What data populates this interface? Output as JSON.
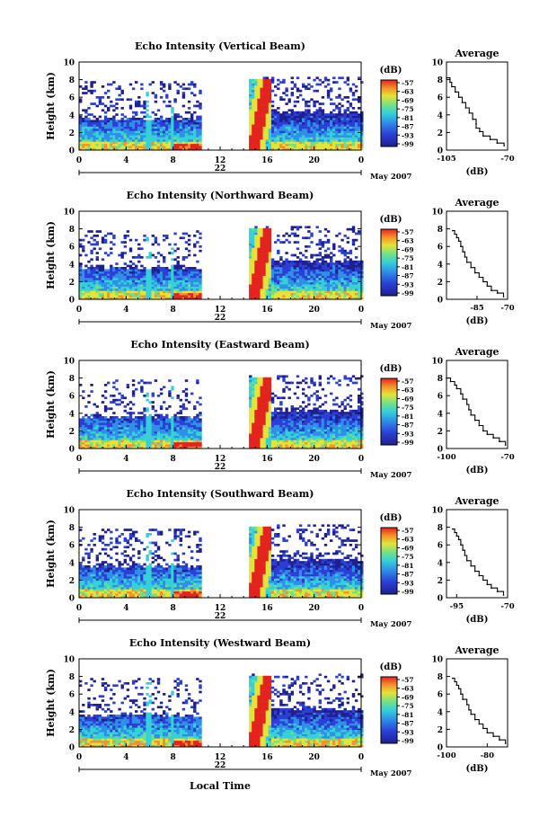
{
  "figure": {
    "xlabel": "Local Time",
    "colorbar_unit": "(dB)",
    "date_label": "May 2007",
    "avg_title": "Average",
    "avg_xlabel": "(dB)"
  },
  "chart_data": [
    {
      "type": "heatmap",
      "title": "Echo Intensity (Vertical Beam)",
      "ylabel": "Height (km)",
      "xlabel": "Local Time",
      "x_ticks": [
        "0",
        "4",
        "8",
        "12",
        "16",
        "20",
        "0"
      ],
      "day_label": "22",
      "date_label": "May 2007",
      "ylim": [
        0,
        10
      ],
      "y_ticks": [
        "0",
        "2",
        "4",
        "6",
        "8",
        "10"
      ],
      "colorbar": {
        "unit": "(dB)",
        "ticks": [
          "-57",
          "-63",
          "-69",
          "-75",
          "-81",
          "-87",
          "-93",
          "-99"
        ]
      },
      "average_profile": {
        "title": "Average",
        "xlabel": "(dB)",
        "xlim": [
          -105,
          -70
        ],
        "x_ticks": [
          "-105",
          "-70"
        ],
        "ylim": [
          0,
          10
        ],
        "y_ticks": [
          "0",
          "2",
          "4",
          "6",
          "8",
          "10"
        ],
        "x": [
          -72,
          -76,
          -80,
          -84,
          -86,
          -88,
          -88,
          -90,
          -92,
          -94,
          -96,
          -98,
          -100,
          -102,
          -103,
          -105
        ],
        "y": [
          0.5,
          0.8,
          1.2,
          1.6,
          2.1,
          2.5,
          3.0,
          3.5,
          4.2,
          4.8,
          5.4,
          6.0,
          6.6,
          7.2,
          7.7,
          8.2
        ]
      }
    },
    {
      "type": "heatmap",
      "title": "Echo Intensity (Northward Beam)",
      "ylabel": "Height (km)",
      "xlabel": "Local Time",
      "x_ticks": [
        "0",
        "4",
        "8",
        "12",
        "16",
        "20",
        "0"
      ],
      "day_label": "22",
      "date_label": "May 2007",
      "ylim": [
        0,
        10
      ],
      "y_ticks": [
        "0",
        "2",
        "4",
        "6",
        "8",
        "10"
      ],
      "colorbar": {
        "unit": "(dB)",
        "ticks": [
          "-57",
          "-63",
          "-69",
          "-75",
          "-81",
          "-87",
          "-93",
          "-99"
        ]
      },
      "average_profile": {
        "title": "Average",
        "xlabel": "(dB)",
        "xlim": [
          -100,
          -70
        ],
        "x_ticks": [
          "-85",
          "-70"
        ],
        "ylim": [
          0,
          10
        ],
        "y_ticks": [
          "0",
          "2",
          "4",
          "6",
          "8",
          "10"
        ],
        "x": [
          -72,
          -75,
          -78,
          -80,
          -82,
          -84,
          -86,
          -88,
          -90,
          -91,
          -92,
          -93,
          -94,
          -95,
          -96,
          -97
        ],
        "y": [
          0.3,
          0.7,
          1.0,
          1.5,
          2.0,
          2.5,
          3.0,
          3.6,
          4.2,
          4.8,
          5.4,
          6.0,
          6.6,
          7.0,
          7.4,
          7.8
        ]
      }
    },
    {
      "type": "heatmap",
      "title": "Echo Intensity (Eastward Beam)",
      "ylabel": "Height (km)",
      "xlabel": "Local Time",
      "x_ticks": [
        "0",
        "4",
        "8",
        "12",
        "16",
        "20",
        "0"
      ],
      "day_label": "22",
      "date_label": "May 2007",
      "ylim": [
        0,
        10
      ],
      "y_ticks": [
        "0",
        "2",
        "4",
        "6",
        "8",
        "10"
      ],
      "colorbar": {
        "unit": "(dB)",
        "ticks": [
          "-57",
          "-63",
          "-69",
          "-75",
          "-81",
          "-87",
          "-93",
          "-99"
        ]
      },
      "average_profile": {
        "title": "Average",
        "xlabel": "(dB)",
        "xlim": [
          -100,
          -70
        ],
        "x_ticks": [
          "-100",
          "-70"
        ],
        "ylim": [
          0,
          10
        ],
        "y_ticks": [
          "0",
          "2",
          "4",
          "6",
          "8",
          "10"
        ],
        "x": [
          -71,
          -74,
          -77,
          -80,
          -82,
          -84,
          -86,
          -88,
          -89,
          -90,
          -92,
          -93,
          -95,
          -96,
          -98,
          -100
        ],
        "y": [
          0.4,
          0.8,
          1.2,
          1.6,
          2.0,
          2.6,
          3.2,
          3.8,
          4.4,
          5.0,
          5.6,
          6.2,
          6.8,
          7.2,
          7.6,
          8.0
        ]
      }
    },
    {
      "type": "heatmap",
      "title": "Echo Intensity (Southward Beam)",
      "ylabel": "Height (km)",
      "xlabel": "Local Time",
      "x_ticks": [
        "0",
        "4",
        "8",
        "12",
        "16",
        "20",
        "0"
      ],
      "day_label": "22",
      "date_label": "May 2007",
      "ylim": [
        0,
        10
      ],
      "y_ticks": [
        "0",
        "2",
        "4",
        "6",
        "8",
        "10"
      ],
      "colorbar": {
        "unit": "(dB)",
        "ticks": [
          "-57",
          "-63",
          "-69",
          "-75",
          "-81",
          "-87",
          "-93",
          "-99"
        ]
      },
      "average_profile": {
        "title": "Average",
        "xlabel": "(dB)",
        "xlim": [
          -100,
          -70
        ],
        "x_ticks": [
          "-95",
          "-70"
        ],
        "ylim": [
          0,
          10
        ],
        "y_ticks": [
          "0",
          "2",
          "4",
          "6",
          "8",
          "10"
        ],
        "x": [
          -72,
          -75,
          -78,
          -80,
          -82,
          -84,
          -86,
          -88,
          -90,
          -91,
          -92,
          -93,
          -94,
          -95,
          -96,
          -97
        ],
        "y": [
          0.3,
          0.7,
          1.1,
          1.5,
          2.0,
          2.5,
          3.0,
          3.6,
          4.2,
          4.8,
          5.4,
          6.0,
          6.6,
          7.0,
          7.4,
          7.8
        ]
      }
    },
    {
      "type": "heatmap",
      "title": "Echo Intensity (Westward Beam)",
      "ylabel": "Height (km)",
      "xlabel": "Local Time",
      "x_ticks": [
        "0",
        "4",
        "8",
        "12",
        "16",
        "20",
        "0"
      ],
      "day_label": "22",
      "date_label": "May 2007",
      "ylim": [
        0,
        10
      ],
      "y_ticks": [
        "0",
        "2",
        "4",
        "6",
        "8",
        "10"
      ],
      "colorbar": {
        "unit": "(dB)",
        "ticks": [
          "-57",
          "-63",
          "-69",
          "-75",
          "-81",
          "-87",
          "-93",
          "-99"
        ]
      },
      "average_profile": {
        "title": "Average",
        "xlabel": "(dB)",
        "xlim": [
          -100,
          -70
        ],
        "x_ticks": [
          "-100",
          "-80"
        ],
        "ylim": [
          0,
          10
        ],
        "y_ticks": [
          "0",
          "2",
          "4",
          "6",
          "8",
          "10"
        ],
        "x": [
          -71,
          -74,
          -77,
          -80,
          -82,
          -84,
          -86,
          -88,
          -89,
          -90,
          -92,
          -93,
          -94,
          -95,
          -96,
          -97
        ],
        "y": [
          0.4,
          0.8,
          1.2,
          1.6,
          2.1,
          2.6,
          3.1,
          3.7,
          4.2,
          4.8,
          5.4,
          6.0,
          6.6,
          7.0,
          7.4,
          7.8
        ]
      }
    }
  ]
}
